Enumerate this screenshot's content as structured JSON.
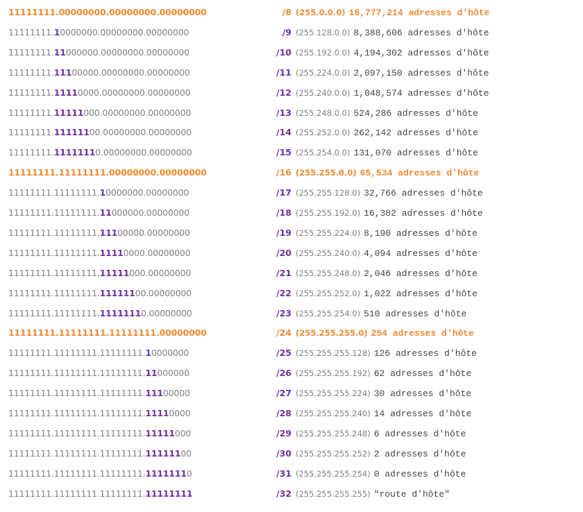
{
  "table": {
    "rows": [
      {
        "highlight": true,
        "binary": [
          "11111111.00000000.00000000.00000000"
        ],
        "prefix": "/8",
        "mask": "(255.0.0.0)",
        "hosts": "16,777,214 adresses d'hôte"
      },
      {
        "highlight": false,
        "binary": [
          "11111111.",
          "1",
          "0000000.00000000.00000000"
        ],
        "prefix": "/9",
        "mask": "(255.128.0.0)",
        "hosts": "8,388,606 adresses d'hôte"
      },
      {
        "highlight": false,
        "binary": [
          "11111111.",
          "11",
          "000000.00000000.00000000"
        ],
        "prefix": "/10",
        "mask": "(255.192.0.0)",
        "hosts": "4,194,302 adresses d'hôte"
      },
      {
        "highlight": false,
        "binary": [
          "11111111.",
          "111",
          "00000.00000000.00000000"
        ],
        "prefix": "/11",
        "mask": "(255.224.0.0)",
        "hosts": "2,097,150 adresses d'hôte"
      },
      {
        "highlight": false,
        "binary": [
          "11111111.",
          "1111",
          "0000.00000000.00000000"
        ],
        "prefix": "/12",
        "mask": "(255.240.0.0)",
        "hosts": "1,048,574 adresses d'hôte"
      },
      {
        "highlight": false,
        "binary": [
          "11111111.",
          "11111",
          "000.00000000.00000000"
        ],
        "prefix": "/13",
        "mask": "(255.248.0.0)",
        "hosts": "524,286 adresses d'hôte"
      },
      {
        "highlight": false,
        "binary": [
          "11111111.",
          "111111",
          "00.00000000.00000000"
        ],
        "prefix": "/14",
        "mask": "(255.252.0.0)",
        "hosts": "262,142 adresses d'hôte"
      },
      {
        "highlight": false,
        "binary": [
          "11111111.",
          "1111111",
          "0.00000000.00000000"
        ],
        "prefix": "/15",
        "mask": "(255.254.0.0)",
        "hosts": "131,070 adresses d'hôte"
      },
      {
        "highlight": true,
        "binary": [
          "11111111.11111111.00000000.00000000"
        ],
        "prefix": "/16",
        "mask": "(255.255.0.0)",
        "hosts": "65,534 adresses d'hôte"
      },
      {
        "highlight": false,
        "binary": [
          "11111111.11111111.",
          "1",
          "0000000.00000000"
        ],
        "prefix": "/17",
        "mask": "(255.255.128.0)",
        "hosts": "32,766 adresses d'hôte"
      },
      {
        "highlight": false,
        "binary": [
          "11111111.11111111.",
          "11",
          "000000.00000000"
        ],
        "prefix": "/18",
        "mask": "(255.255.192.0)",
        "hosts": "16,382 adresses d'hôte"
      },
      {
        "highlight": false,
        "binary": [
          "11111111.11111111.",
          "111",
          "00000.00000000"
        ],
        "prefix": "/19",
        "mask": "(255.255.224.0)",
        "hosts": "8,190 adresses d'hôte"
      },
      {
        "highlight": false,
        "binary": [
          "11111111.11111111.",
          "1111",
          "0000.00000000"
        ],
        "prefix": "/20",
        "mask": "(255.255.240.0)",
        "hosts": "4,094 adresses d'hôte"
      },
      {
        "highlight": false,
        "binary": [
          "11111111.11111111.",
          "11111",
          "000.00000000"
        ],
        "prefix": "/21",
        "mask": "(255.255.248.0)",
        "hosts": "2,046 adresses d'hôte"
      },
      {
        "highlight": false,
        "binary": [
          "11111111.11111111.",
          "111111",
          "00.00000000"
        ],
        "prefix": "/22",
        "mask": "(255.255.252.0)",
        "hosts": "1,022 adresses d'hôte"
      },
      {
        "highlight": false,
        "binary": [
          "11111111.11111111.",
          "1111111",
          "0.00000000"
        ],
        "prefix": "/23",
        "mask": "(255.255.254.0)",
        "hosts": "510 adresses d'hôte"
      },
      {
        "highlight": true,
        "binary": [
          "11111111.11111111.11111111.00000000"
        ],
        "prefix": "/24",
        "mask": "(255.255.255.0)",
        "hosts": "254 adresses d'hôte"
      },
      {
        "highlight": false,
        "binary": [
          "11111111.11111111.11111111.",
          "1",
          "0000000"
        ],
        "prefix": "/25",
        "mask": "(255.255.255.128)",
        "hosts": "126 adresses d'hôte"
      },
      {
        "highlight": false,
        "binary": [
          "11111111.11111111.11111111.",
          "11",
          "000000"
        ],
        "prefix": "/26",
        "mask": "(255.255.255.192)",
        "hosts": "62 adresses d'hôte"
      },
      {
        "highlight": false,
        "binary": [
          "11111111.11111111.11111111.",
          "111",
          "00000"
        ],
        "prefix": "/27",
        "mask": "(255.255.255.224)",
        "hosts": "30 adresses d'hôte"
      },
      {
        "highlight": false,
        "binary": [
          "11111111.11111111.11111111.",
          "1111",
          "0000"
        ],
        "prefix": "/28",
        "mask": "(255.255.255.240)",
        "hosts": "14 adresses d'hôte"
      },
      {
        "highlight": false,
        "binary": [
          "11111111.11111111.11111111.",
          "11111",
          "000"
        ],
        "prefix": "/29",
        "mask": "(255.255.255.248)",
        "hosts": "6 adresses d'hôte"
      },
      {
        "highlight": false,
        "binary": [
          "11111111.11111111.11111111.",
          "111111",
          "00"
        ],
        "prefix": "/30",
        "mask": "(255.255.255.252)",
        "hosts": "2 adresses d'hôte"
      },
      {
        "highlight": false,
        "binary": [
          "11111111.11111111.11111111.",
          "1111111",
          "0"
        ],
        "prefix": "/31",
        "mask": "(255.255.255.254)",
        "hosts": "0 adresses d'hôte"
      },
      {
        "highlight": false,
        "binary": [
          "11111111.11111111.11111111.",
          "11111111"
        ],
        "prefix": "/32",
        "mask": "(255.255.255.255)",
        "hosts": "\"route d'hôte\""
      }
    ]
  }
}
